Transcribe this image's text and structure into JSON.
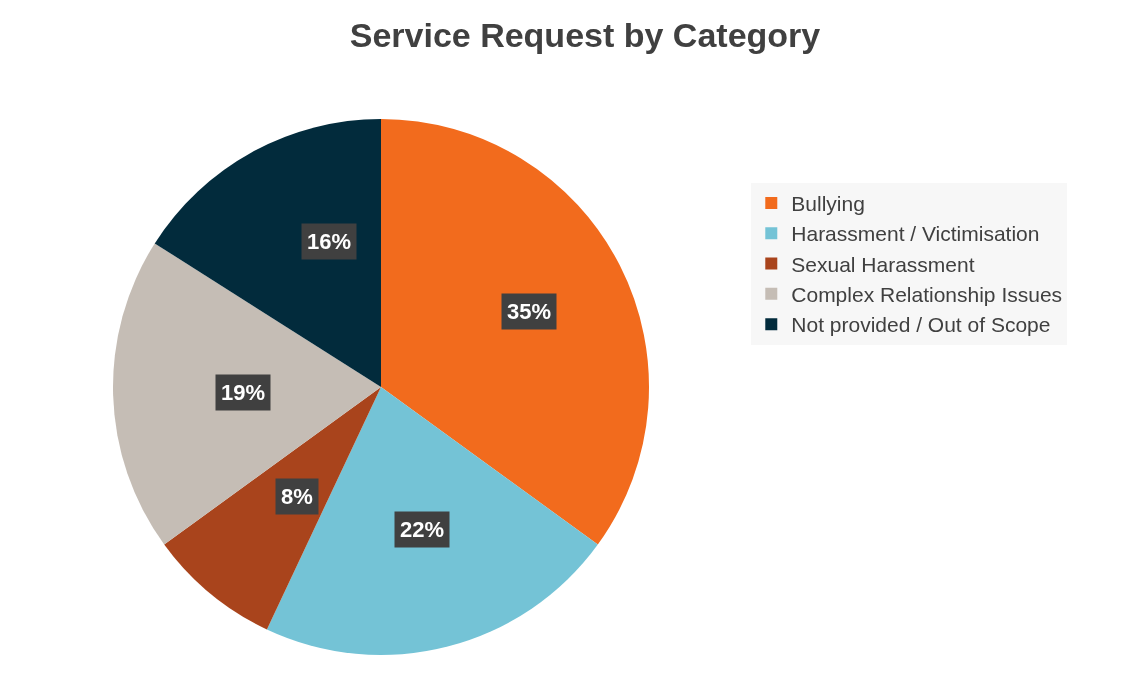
{
  "chart_data": {
    "type": "pie",
    "title": "Service Request by Category",
    "categories": [
      "Bullying",
      "Harassment / Victimisation",
      "Sexual Harassment",
      "Complex Relationship Issues",
      "Not provided / Out of Scope"
    ],
    "values": [
      35,
      22,
      8,
      19,
      16
    ],
    "colors": [
      "#f26b1d",
      "#74c3d6",
      "#a9441c",
      "#c5bdb5",
      "#022b3c"
    ],
    "value_labels": [
      "35%",
      "22%",
      "8%",
      "19%",
      "16%"
    ],
    "legend": "right"
  }
}
